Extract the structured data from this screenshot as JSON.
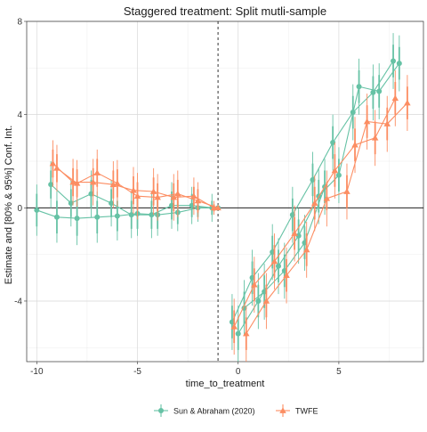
{
  "chart_data": {
    "type": "line",
    "title": "Staggered treatment: Split mutli-sample",
    "xlabel": "time_to_treatment",
    "ylabel": "Estimate and [80% & 95%] Conf. Int.",
    "xlim": [
      -10.5,
      9.2
    ],
    "ylim": [
      -6.6,
      8.0
    ],
    "x_ticks": [
      -10,
      -5,
      0,
      5
    ],
    "y_ticks": [
      -4,
      0,
      4,
      8
    ],
    "zero_line": 0,
    "reference_vline": -1,
    "grid": true,
    "legend_position": "bottom",
    "series": [
      {
        "name": "Sun & Abraham (2020)",
        "color": "#66c2a5",
        "marker": "circle",
        "lines": [
          {
            "x": [
              -10,
              -9,
              -8,
              -7,
              -6,
              -5,
              -4,
              -3,
              -2,
              -1
            ],
            "y": [
              -0.1,
              -0.4,
              -0.45,
              -0.4,
              -0.35,
              -0.25,
              -0.3,
              -0.2,
              0.0,
              0.0
            ],
            "ci95": [
              [
                -1.2,
                1.0
              ],
              [
                -1.5,
                0.7
              ],
              [
                -1.6,
                0.7
              ],
              [
                -1.5,
                0.7
              ],
              [
                -1.4,
                0.7
              ],
              [
                -1.2,
                0.7
              ],
              [
                -1.2,
                0.6
              ],
              [
                -1.0,
                0.6
              ],
              [
                -0.6,
                0.6
              ],
              [
                0.0,
                0.0
              ]
            ],
            "ci80": [
              [
                -0.8,
                0.6
              ],
              [
                -1.1,
                0.3
              ],
              [
                -1.2,
                0.3
              ],
              [
                -1.1,
                0.3
              ],
              [
                -1.0,
                0.3
              ],
              [
                -0.9,
                0.4
              ],
              [
                -0.9,
                0.3
              ],
              [
                -0.7,
                0.3
              ],
              [
                -0.4,
                0.4
              ],
              [
                0.0,
                0.0
              ]
            ]
          },
          {
            "x": [
              -9.3,
              -8.3,
              -7.3,
              -6.3,
              -5.3,
              -4.3,
              -3.3,
              -2.3,
              -1.3
            ],
            "y": [
              1.0,
              0.2,
              0.6,
              0.2,
              -0.3,
              -0.3,
              0.1,
              0.1,
              0.0
            ],
            "ci95": [
              [
                0.0,
                2.0
              ],
              [
                -0.8,
                1.2
              ],
              [
                -0.4,
                1.6
              ],
              [
                -0.8,
                1.2
              ],
              [
                -1.3,
                0.7
              ],
              [
                -1.3,
                0.7
              ],
              [
                -0.9,
                1.1
              ],
              [
                -0.7,
                0.9
              ],
              [
                -0.6,
                0.6
              ]
            ],
            "ci80": [
              [
                0.4,
                1.6
              ],
              [
                -0.4,
                0.8
              ],
              [
                0.0,
                1.2
              ],
              [
                -0.4,
                0.8
              ],
              [
                -0.9,
                0.3
              ],
              [
                -0.9,
                0.3
              ],
              [
                -0.5,
                0.7
              ],
              [
                -0.4,
                0.6
              ],
              [
                -0.3,
                0.3
              ]
            ]
          },
          {
            "x": [
              -0.3,
              0.7,
              1.7,
              2.7,
              3.7,
              4.7,
              5.7,
              6.7,
              7.7
            ],
            "y": [
              -4.9,
              -3.0,
              -1.9,
              -0.3,
              1.2,
              2.8,
              4.1,
              4.95,
              6.3
            ],
            "ci95": [
              [
                -6.1,
                -3.7
              ],
              [
                -4.2,
                -1.8
              ],
              [
                -3.1,
                -0.7
              ],
              [
                -1.5,
                0.9
              ],
              [
                0.0,
                2.4
              ],
              [
                1.6,
                4.0
              ],
              [
                2.9,
                5.3
              ],
              [
                3.75,
                6.15
              ],
              [
                5.1,
                7.5
              ]
            ],
            "ci80": [
              [
                -5.6,
                -4.2
              ],
              [
                -3.7,
                -2.3
              ],
              [
                -2.6,
                -1.2
              ],
              [
                -1.0,
                0.4
              ],
              [
                0.5,
                1.9
              ],
              [
                2.1,
                3.5
              ],
              [
                3.4,
                4.8
              ],
              [
                4.25,
                5.65
              ],
              [
                5.6,
                7.0
              ]
            ]
          },
          {
            "x": [
              0,
              1,
              2,
              3,
              4,
              5,
              6,
              7,
              8
            ],
            "y": [
              -5.4,
              -4.0,
              -2.5,
              -1.2,
              0.5,
              1.4,
              5.2,
              5.0,
              6.2
            ],
            "ci95": [
              [
                -6.6,
                -4.2
              ],
              [
                -5.2,
                -2.8
              ],
              [
                -3.7,
                -1.3
              ],
              [
                -2.4,
                0.0
              ],
              [
                -0.7,
                1.7
              ],
              [
                0.2,
                2.6
              ],
              [
                4.0,
                6.4
              ],
              [
                3.8,
                6.2
              ],
              [
                5.0,
                7.4
              ]
            ],
            "ci80": [
              [
                -6.1,
                -4.7
              ],
              [
                -4.7,
                -3.3
              ],
              [
                -3.2,
                -1.8
              ],
              [
                -1.9,
                -0.5
              ],
              [
                -0.2,
                1.2
              ],
              [
                0.7,
                2.1
              ],
              [
                4.5,
                5.9
              ],
              [
                4.3,
                5.7
              ],
              [
                5.5,
                6.9
              ]
            ]
          },
          {
            "x": [
              0.3,
              1.3,
              2.3,
              3.3,
              4.3
            ],
            "y": [
              -4.3,
              -3.6,
              -2.7,
              -1.5,
              0.9
            ],
            "ci95": [
              [
                -5.5,
                -3.1
              ],
              [
                -4.8,
                -2.4
              ],
              [
                -3.9,
                -1.5
              ],
              [
                -2.7,
                -0.3
              ],
              [
                -0.3,
                2.1
              ]
            ],
            "ci80": [
              [
                -5.0,
                -3.6
              ],
              [
                -4.3,
                -2.9
              ],
              [
                -3.4,
                -2.0
              ],
              [
                -2.2,
                -0.8
              ],
              [
                0.2,
                1.6
              ]
            ]
          }
        ]
      },
      {
        "name": "TWFE",
        "color": "#fc8d62",
        "marker": "triangle",
        "lines": [
          {
            "x": [
              -9.2,
              -8.2,
              -7.2,
              -6.2,
              -5.2,
              -4.2,
              -3.2,
              -2.2,
              -1.2
            ],
            "y": [
              1.9,
              1.1,
              1.1,
              1.0,
              0.75,
              0.7,
              0.45,
              0.5,
              0.0
            ],
            "ci95": [
              [
                0.9,
                2.9
              ],
              [
                0.1,
                2.1
              ],
              [
                0.1,
                2.1
              ],
              [
                0.0,
                2.0
              ],
              [
                -0.25,
                1.75
              ],
              [
                -0.3,
                1.7
              ],
              [
                -0.55,
                1.45
              ],
              [
                -0.3,
                1.3
              ],
              [
                -0.3,
                0.3
              ]
            ],
            "ci80": [
              [
                1.3,
                2.5
              ],
              [
                0.5,
                1.7
              ],
              [
                0.5,
                1.7
              ],
              [
                0.4,
                1.6
              ],
              [
                0.15,
                1.35
              ],
              [
                0.1,
                1.3
              ],
              [
                -0.15,
                1.05
              ],
              [
                0.1,
                0.9
              ],
              [
                -0.15,
                0.15
              ]
            ]
          },
          {
            "x": [
              -9.0,
              -8.0,
              -7.0,
              -6.0,
              -5.0,
              -4.0,
              -3.0,
              -2.0,
              -1.0
            ],
            "y": [
              1.7,
              1.05,
              1.5,
              1.05,
              0.5,
              0.45,
              0.6,
              0.3,
              0.0
            ],
            "ci95": [
              [
                0.7,
                2.7
              ],
              [
                0.05,
                2.05
              ],
              [
                0.5,
                2.5
              ],
              [
                0.05,
                2.05
              ],
              [
                -0.5,
                1.5
              ],
              [
                -0.55,
                1.45
              ],
              [
                -0.4,
                1.6
              ],
              [
                -0.5,
                1.1
              ],
              [
                0.0,
                0.0
              ]
            ],
            "ci80": [
              [
                1.1,
                2.3
              ],
              [
                0.45,
                1.65
              ],
              [
                0.9,
                2.1
              ],
              [
                0.45,
                1.65
              ],
              [
                -0.1,
                1.1
              ],
              [
                -0.15,
                1.05
              ],
              [
                0.0,
                1.2
              ],
              [
                -0.2,
                0.8
              ],
              [
                0.0,
                0.0
              ]
            ]
          },
          {
            "x": [
              -0.2,
              0.8,
              1.8,
              2.8,
              3.8,
              4.8,
              5.8,
              6.8,
              7.8
            ],
            "y": [
              -5.1,
              -3.3,
              -2.3,
              -1.1,
              0.2,
              1.6,
              2.7,
              3.0,
              4.7
            ],
            "ci95": [
              [
                -6.3,
                -3.9
              ],
              [
                -4.5,
                -2.1
              ],
              [
                -3.5,
                -1.1
              ],
              [
                -2.3,
                0.1
              ],
              [
                -1.0,
                1.4
              ],
              [
                0.4,
                2.8
              ],
              [
                1.5,
                3.9
              ],
              [
                1.8,
                4.2
              ],
              [
                3.5,
                5.9
              ]
            ],
            "ci80": [
              [
                -5.8,
                -4.4
              ],
              [
                -4.0,
                -2.6
              ],
              [
                -3.0,
                -1.6
              ],
              [
                -1.8,
                -0.4
              ],
              [
                -0.5,
                0.9
              ],
              [
                0.9,
                2.3
              ],
              [
                2.0,
                3.4
              ],
              [
                2.3,
                3.7
              ],
              [
                4.0,
                5.4
              ]
            ]
          },
          {
            "x": [
              0.4,
              1.4,
              2.4,
              3.4,
              4.4,
              5.4,
              6.4,
              7.4,
              8.4
            ],
            "y": [
              -5.4,
              -4.0,
              -2.9,
              -1.8,
              0.4,
              0.7,
              3.7,
              3.6,
              4.5
            ],
            "ci95": [
              [
                -6.6,
                -4.2
              ],
              [
                -5.2,
                -2.8
              ],
              [
                -4.1,
                -1.7
              ],
              [
                -3.0,
                -0.6
              ],
              [
                -0.8,
                1.6
              ],
              [
                -0.5,
                1.9
              ],
              [
                2.5,
                4.9
              ],
              [
                2.4,
                4.8
              ],
              [
                3.3,
                5.7
              ]
            ],
            "ci80": [
              [
                -6.1,
                -4.7
              ],
              [
                -4.7,
                -3.3
              ],
              [
                -3.6,
                -2.2
              ],
              [
                -2.5,
                -1.1
              ],
              [
                -0.1,
                1.1
              ],
              [
                0.0,
                1.4
              ],
              [
                3.0,
                4.4
              ],
              [
                2.9,
                4.3
              ],
              [
                3.8,
                5.2
              ]
            ]
          }
        ]
      }
    ]
  }
}
